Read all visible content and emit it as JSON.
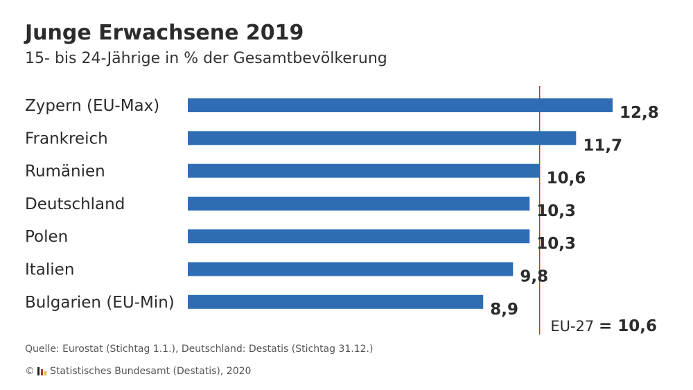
{
  "header": {
    "title": "Junge Erwachsene 2019",
    "subtitle": "15- bis 24-Jährige in % der Gesamtbevölkerung"
  },
  "chart_data": {
    "type": "bar",
    "orientation": "horizontal",
    "categories": [
      "Zypern (EU-Max)",
      "Frankreich",
      "Rumänien",
      "Deutschland",
      "Polen",
      "Italien",
      "Bulgarien (EU-Min)"
    ],
    "values": [
      12.8,
      11.7,
      10.6,
      10.3,
      10.3,
      9.8,
      8.9
    ],
    "value_labels": [
      "12,8",
      "11,7",
      "10,6",
      "10,3",
      "10,3",
      "9,8",
      "8,9"
    ],
    "bar_color": "#2e6db4",
    "xlim": [
      0,
      12.8
    ],
    "reference_line": {
      "value": 10.6,
      "label": "EU-27",
      "separator": "=",
      "value_label": "10,6",
      "color": "#c0392b"
    },
    "grid": false,
    "legend": "none"
  },
  "footer": {
    "source": "Quelle: Eurostat (Stichtag 1.1.), Deutschland: Destatis (Stichtag 31.12.)",
    "copyright_symbol": "©",
    "copyright_text": "Statistisches Bundesamt (Destatis), 2020"
  },
  "colors": {
    "text": "#2b2b2b",
    "logo_bars": [
      "#222222",
      "#c0392b",
      "#e8b923"
    ]
  }
}
